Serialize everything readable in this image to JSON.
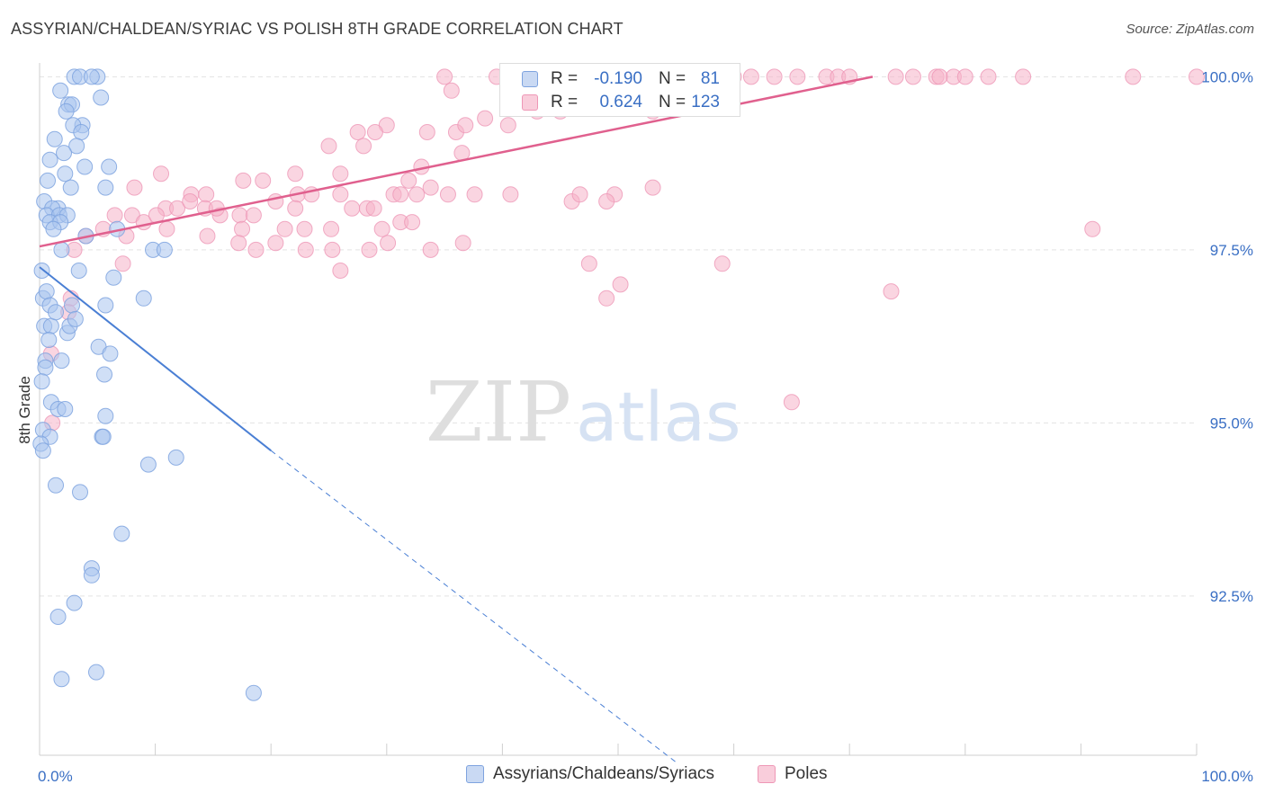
{
  "header": {
    "title": "ASSYRIAN/CHALDEAN/SYRIAC VS POLISH 8TH GRADE CORRELATION CHART",
    "source": "Source: ZipAtlas.com"
  },
  "watermark": {
    "zip": "ZIP",
    "atlas": "atlas"
  },
  "stats": [
    {
      "r_label": "R =",
      "r_value": "-0.190",
      "n_label": "N =",
      "n_value": "81",
      "color": "#9ab8e8"
    },
    {
      "r_label": "R =",
      "r_value": "0.624",
      "n_label": "N =",
      "n_value": "123",
      "color": "#f4a9c2"
    }
  ],
  "legend": [
    {
      "label": "Assyrians/Chaldeans/Syriacs",
      "color": "#9ab8e8"
    },
    {
      "label": "Poles",
      "color": "#f4a9c2"
    }
  ],
  "chart_data": {
    "type": "scatter",
    "title": "ASSYRIAN/CHALDEAN/SYRIAC VS POLISH 8TH GRADE CORRELATION CHART",
    "xlabel": "",
    "ylabel": "8th Grade",
    "xlim": [
      0,
      100
    ],
    "ylim": [
      90.2,
      100.2
    ],
    "x_tick_labels": [
      {
        "value": 0,
        "label": "0.0%"
      },
      {
        "value": 100,
        "label": "100.0%"
      }
    ],
    "y_ticks": [
      {
        "value": 92.5,
        "label": "92.5%"
      },
      {
        "value": 95.0,
        "label": "95.0%"
      },
      {
        "value": 97.5,
        "label": "97.5%"
      },
      {
        "value": 100.0,
        "label": "100.0%"
      }
    ],
    "grid": true,
    "colors": {
      "blue": "#4a7fd4",
      "blue_fill": "#a9c4ee",
      "pink": "#e0608e",
      "pink_fill": "#f5b3c9",
      "tick_text": "#3a6fc4"
    },
    "series": [
      {
        "name": "Assyrians/Chaldeans/Syriacs",
        "trend": {
          "x0": 0,
          "y0": 97.25,
          "x1": 20,
          "y1": 94.6,
          "dash_to_x": 55,
          "dash_to_y": 90.1
        },
        "points": [
          [
            3.0,
            100.0
          ],
          [
            5.0,
            100.0
          ],
          [
            3.5,
            100.0
          ],
          [
            4.5,
            100.0
          ],
          [
            1.8,
            99.8
          ],
          [
            2.5,
            99.6
          ],
          [
            2.8,
            99.6
          ],
          [
            5.3,
            99.7
          ],
          [
            2.3,
            99.5
          ],
          [
            3.7,
            99.3
          ],
          [
            2.9,
            99.3
          ],
          [
            3.6,
            99.2
          ],
          [
            1.3,
            99.1
          ],
          [
            3.2,
            99.0
          ],
          [
            2.1,
            98.9
          ],
          [
            0.9,
            98.8
          ],
          [
            3.9,
            98.7
          ],
          [
            6.0,
            98.7
          ],
          [
            2.2,
            98.6
          ],
          [
            0.7,
            98.5
          ],
          [
            2.7,
            98.4
          ],
          [
            5.7,
            98.4
          ],
          [
            0.4,
            98.2
          ],
          [
            1.6,
            98.1
          ],
          [
            1.1,
            98.1
          ],
          [
            0.6,
            98.0
          ],
          [
            1.7,
            98.0
          ],
          [
            2.4,
            98.0
          ],
          [
            0.9,
            97.9
          ],
          [
            1.8,
            97.9
          ],
          [
            1.2,
            97.8
          ],
          [
            4.0,
            97.7
          ],
          [
            6.7,
            97.8
          ],
          [
            1.9,
            97.5
          ],
          [
            9.8,
            97.5
          ],
          [
            10.8,
            97.5
          ],
          [
            3.4,
            97.2
          ],
          [
            6.4,
            97.1
          ],
          [
            0.3,
            96.8
          ],
          [
            0.6,
            96.9
          ],
          [
            0.9,
            96.7
          ],
          [
            2.8,
            96.7
          ],
          [
            5.7,
            96.7
          ],
          [
            9.0,
            96.8
          ],
          [
            0.4,
            96.4
          ],
          [
            1.0,
            96.4
          ],
          [
            2.4,
            96.3
          ],
          [
            2.6,
            96.4
          ],
          [
            0.8,
            96.2
          ],
          [
            5.1,
            96.1
          ],
          [
            0.5,
            95.9
          ],
          [
            1.9,
            95.9
          ],
          [
            6.1,
            96.0
          ],
          [
            0.5,
            95.8
          ],
          [
            0.2,
            95.6
          ],
          [
            5.6,
            95.7
          ],
          [
            1.0,
            95.3
          ],
          [
            1.6,
            95.2
          ],
          [
            5.7,
            95.1
          ],
          [
            0.3,
            94.9
          ],
          [
            0.9,
            94.8
          ],
          [
            5.4,
            94.8
          ],
          [
            5.5,
            94.8
          ],
          [
            0.1,
            94.7
          ],
          [
            0.3,
            94.6
          ],
          [
            11.8,
            94.5
          ],
          [
            9.4,
            94.4
          ],
          [
            1.4,
            94.1
          ],
          [
            3.5,
            94.0
          ],
          [
            7.1,
            93.4
          ],
          [
            4.5,
            92.9
          ],
          [
            4.5,
            92.8
          ],
          [
            3.0,
            92.4
          ],
          [
            1.6,
            92.2
          ],
          [
            1.9,
            91.3
          ],
          [
            4.9,
            91.4
          ],
          [
            18.5,
            91.1
          ],
          [
            0.2,
            97.2
          ],
          [
            1.4,
            96.6
          ],
          [
            3.1,
            96.5
          ],
          [
            2.2,
            95.2
          ]
        ]
      },
      {
        "name": "Poles",
        "trend": {
          "x0": 0,
          "y0": 97.55,
          "x1": 72,
          "y1": 100.0
        },
        "points": [
          [
            35.0,
            100.0
          ],
          [
            39.5,
            100.0
          ],
          [
            41.0,
            100.0
          ],
          [
            42.0,
            100.0
          ],
          [
            44.5,
            100.0
          ],
          [
            45.5,
            100.0
          ],
          [
            48.0,
            100.0
          ],
          [
            50.0,
            100.0
          ],
          [
            52.0,
            100.0
          ],
          [
            55.5,
            100.0
          ],
          [
            57.0,
            100.0
          ],
          [
            58.5,
            100.0
          ],
          [
            60.0,
            100.0
          ],
          [
            61.5,
            100.0
          ],
          [
            63.5,
            100.0
          ],
          [
            65.5,
            100.0
          ],
          [
            68.0,
            100.0
          ],
          [
            69.0,
            100.0
          ],
          [
            70.0,
            100.0
          ],
          [
            74.0,
            100.0
          ],
          [
            75.5,
            100.0
          ],
          [
            77.5,
            100.0
          ],
          [
            79.0,
            100.0
          ],
          [
            80.0,
            100.0
          ],
          [
            82.0,
            100.0
          ],
          [
            85.0,
            100.0
          ],
          [
            94.5,
            100.0
          ],
          [
            100.0,
            100.0
          ],
          [
            77.8,
            100.0
          ],
          [
            53.3,
            100.0
          ],
          [
            35.6,
            99.8
          ],
          [
            53.0,
            99.5
          ],
          [
            57.0,
            99.6
          ],
          [
            43.0,
            99.5
          ],
          [
            45.0,
            99.5
          ],
          [
            38.5,
            99.4
          ],
          [
            30.0,
            99.3
          ],
          [
            27.5,
            99.2
          ],
          [
            29.0,
            99.2
          ],
          [
            33.5,
            99.2
          ],
          [
            36.0,
            99.2
          ],
          [
            36.8,
            99.3
          ],
          [
            40.5,
            99.3
          ],
          [
            25.0,
            99.0
          ],
          [
            28.0,
            99.0
          ],
          [
            36.5,
            98.9
          ],
          [
            33.0,
            98.7
          ],
          [
            26.0,
            98.6
          ],
          [
            10.5,
            98.6
          ],
          [
            17.6,
            98.5
          ],
          [
            19.3,
            98.5
          ],
          [
            22.1,
            98.6
          ],
          [
            31.9,
            98.5
          ],
          [
            8.2,
            98.4
          ],
          [
            13.1,
            98.3
          ],
          [
            14.4,
            98.3
          ],
          [
            20.4,
            98.2
          ],
          [
            22.3,
            98.3
          ],
          [
            23.5,
            98.3
          ],
          [
            26.0,
            98.3
          ],
          [
            30.6,
            98.3
          ],
          [
            31.2,
            98.3
          ],
          [
            32.6,
            98.3
          ],
          [
            33.8,
            98.4
          ],
          [
            35.3,
            98.3
          ],
          [
            37.6,
            98.3
          ],
          [
            40.7,
            98.3
          ],
          [
            46.0,
            98.2
          ],
          [
            46.7,
            98.3
          ],
          [
            49.7,
            98.3
          ],
          [
            53.0,
            98.4
          ],
          [
            49.0,
            98.2
          ],
          [
            10.9,
            98.1
          ],
          [
            11.9,
            98.1
          ],
          [
            13.0,
            98.2
          ],
          [
            14.3,
            98.1
          ],
          [
            15.6,
            98.0
          ],
          [
            17.3,
            98.0
          ],
          [
            18.5,
            98.0
          ],
          [
            22.1,
            98.1
          ],
          [
            27.0,
            98.1
          ],
          [
            28.3,
            98.1
          ],
          [
            28.9,
            98.1
          ],
          [
            6.5,
            98.0
          ],
          [
            8.0,
            98.0
          ],
          [
            9.0,
            97.9
          ],
          [
            10.1,
            98.0
          ],
          [
            17.5,
            97.8
          ],
          [
            21.2,
            97.8
          ],
          [
            22.9,
            97.8
          ],
          [
            25.2,
            97.8
          ],
          [
            29.6,
            97.8
          ],
          [
            31.2,
            97.9
          ],
          [
            32.2,
            97.9
          ],
          [
            4.0,
            97.7
          ],
          [
            5.5,
            97.8
          ],
          [
            7.5,
            97.7
          ],
          [
            11.0,
            97.8
          ],
          [
            14.5,
            97.7
          ],
          [
            17.2,
            97.6
          ],
          [
            18.7,
            97.5
          ],
          [
            20.4,
            97.6
          ],
          [
            23.0,
            97.5
          ],
          [
            25.3,
            97.5
          ],
          [
            28.5,
            97.5
          ],
          [
            30.1,
            97.6
          ],
          [
            3.0,
            97.5
          ],
          [
            26.0,
            97.2
          ],
          [
            7.2,
            97.3
          ],
          [
            47.5,
            97.3
          ],
          [
            50.2,
            97.0
          ],
          [
            59.0,
            97.3
          ],
          [
            49.0,
            96.8
          ],
          [
            73.6,
            96.9
          ],
          [
            33.8,
            97.5
          ],
          [
            65.0,
            95.3
          ],
          [
            2.7,
            96.8
          ],
          [
            2.5,
            96.6
          ],
          [
            1.0,
            96.0
          ],
          [
            1.1,
            95.0
          ],
          [
            91.0,
            97.8
          ],
          [
            36.6,
            97.6
          ],
          [
            15.3,
            98.1
          ]
        ]
      }
    ]
  }
}
